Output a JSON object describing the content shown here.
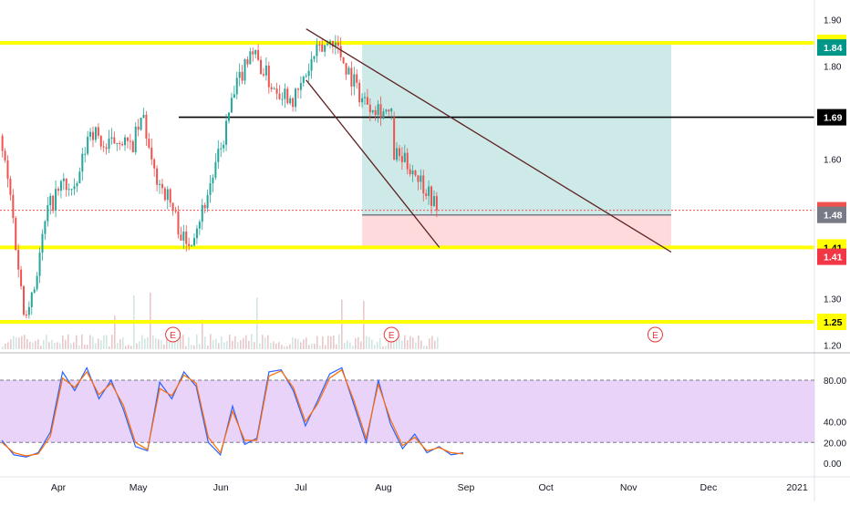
{
  "colors": {
    "up": "#26a69a",
    "down": "#ef5350",
    "level_line": "#ffff00",
    "target_zone": "#b2dfdb",
    "stop_zone": "#ffcdd2",
    "stoch_band": "#e1c4f7",
    "stoch_k": "#2962ff",
    "stoch_d": "#ff6d00",
    "earnings": "#e53935"
  },
  "chart_data": [
    {
      "type": "candlestick",
      "title": "",
      "x_ticks": [
        "Apr",
        "May",
        "Jun",
        "Jul",
        "Aug",
        "Sep",
        "Oct",
        "Nov",
        "Dec",
        "2021"
      ],
      "y_ticks": [
        "1.90",
        "1.80",
        "1.70",
        "1.60",
        "1.50",
        "1.40",
        "1.30",
        "1.20"
      ],
      "ylim": [
        1.18,
        1.92
      ],
      "grid": false,
      "candles_close_path": [
        {
          "x": "Mar 10",
          "y": 1.65
        },
        {
          "x": "Mar 14",
          "y": 1.52
        },
        {
          "x": "Mar 19",
          "y": 1.27
        },
        {
          "x": "Mar 23",
          "y": 1.33
        },
        {
          "x": "Mar 28",
          "y": 1.49
        },
        {
          "x": "Apr 03",
          "y": 1.55
        },
        {
          "x": "Apr 07",
          "y": 1.52
        },
        {
          "x": "Apr 13",
          "y": 1.67
        },
        {
          "x": "Apr 19",
          "y": 1.62
        },
        {
          "x": "Apr 24",
          "y": 1.65
        },
        {
          "x": "Apr 28",
          "y": 1.62
        },
        {
          "x": "May 03",
          "y": 1.69
        },
        {
          "x": "May 06",
          "y": 1.58
        },
        {
          "x": "May 12",
          "y": 1.52
        },
        {
          "x": "May 19",
          "y": 1.41
        },
        {
          "x": "May 25",
          "y": 1.49
        },
        {
          "x": "Jun 01",
          "y": 1.62
        },
        {
          "x": "Jun 05",
          "y": 1.72
        },
        {
          "x": "Jun 12",
          "y": 1.84
        },
        {
          "x": "Jun 20",
          "y": 1.76
        },
        {
          "x": "Jun 29",
          "y": 1.73
        },
        {
          "x": "Jul 06",
          "y": 1.82
        },
        {
          "x": "Jul 13",
          "y": 1.86
        },
        {
          "x": "Jul 18",
          "y": 1.8
        },
        {
          "x": "Jul 24",
          "y": 1.73
        },
        {
          "x": "Jul 31",
          "y": 1.71
        },
        {
          "x": "Aug 04",
          "y": 1.69
        },
        {
          "x": "Aug 05",
          "y": 1.61
        },
        {
          "x": "Aug 12",
          "y": 1.58
        },
        {
          "x": "Aug 19",
          "y": 1.52
        },
        {
          "x": "Aug 21",
          "y": 1.49
        }
      ],
      "levels": [
        {
          "label": "1.85",
          "value": 1.85,
          "style": "yellow"
        },
        {
          "label": "1.69",
          "value": 1.69,
          "style": "black"
        },
        {
          "label": "1.41",
          "value": 1.41,
          "style": "yellow"
        },
        {
          "label": "1.25",
          "value": 1.25,
          "style": "yellow"
        }
      ],
      "price_tags": [
        {
          "label": "1.85",
          "value": 1.85,
          "bg": "#ffff00",
          "fg": "#000000"
        },
        {
          "label": "1.84",
          "value": 1.84,
          "bg": "#009688",
          "fg": "#ffffff"
        },
        {
          "label": "1.69",
          "value": 1.69,
          "bg": "#000000",
          "fg": "#ffffff"
        },
        {
          "label": "1.49",
          "value": 1.49,
          "bg": "#ef5350",
          "fg": "#ffffff"
        },
        {
          "label": "1.48",
          "value": 1.48,
          "bg": "#787b86",
          "fg": "#ffffff"
        },
        {
          "label": "1.41",
          "value": 1.41,
          "bg": "#ffff00",
          "fg": "#000000"
        },
        {
          "label": "1.41",
          "value": 1.39,
          "bg": "#f23645",
          "fg": "#ffffff"
        },
        {
          "label": "1.25",
          "value": 1.25,
          "bg": "#ffff00",
          "fg": "#000000"
        }
      ],
      "current_price": 1.49,
      "position": {
        "entry": 1.48,
        "target": 1.85,
        "stop": 1.41,
        "start": "Jul 24",
        "end": "Nov 17"
      },
      "trendlines": [
        {
          "from": {
            "x": "Jul 03",
            "y": 1.88
          },
          "to": {
            "x": "Nov 17",
            "y": 1.4
          }
        },
        {
          "from": {
            "x": "Jul 03",
            "y": 1.77
          },
          "to": {
            "x": "Aug 22",
            "y": 1.41
          }
        }
      ],
      "earnings_markers": [
        {
          "label": "E",
          "x": "May 14"
        },
        {
          "label": "E",
          "x": "Aug 04"
        },
        {
          "label": "E",
          "x": "Nov 11"
        }
      ]
    },
    {
      "type": "line",
      "title": "",
      "y_ticks": [
        "80.00",
        "40.00",
        "20.00",
        "0.00"
      ],
      "ylim": [
        -5,
        105
      ],
      "band": [
        20,
        80
      ],
      "series": [
        {
          "values": [
            22,
            8,
            6,
            10,
            30,
            88,
            70,
            92,
            62,
            80,
            52,
            16,
            12,
            78,
            62,
            88,
            74,
            20,
            8,
            55,
            18,
            24,
            88,
            90,
            70,
            36,
            60,
            86,
            92,
            56,
            20,
            80,
            38,
            14,
            28,
            10,
            16,
            8,
            10
          ]
        },
        {
          "values": [
            20,
            10,
            7,
            9,
            26,
            82,
            73,
            88,
            66,
            77,
            56,
            20,
            13,
            72,
            65,
            85,
            77,
            25,
            10,
            50,
            22,
            22,
            84,
            89,
            73,
            40,
            57,
            82,
            90,
            60,
            24,
            76,
            42,
            17,
            25,
            12,
            15,
            10,
            9
          ]
        }
      ]
    }
  ]
}
